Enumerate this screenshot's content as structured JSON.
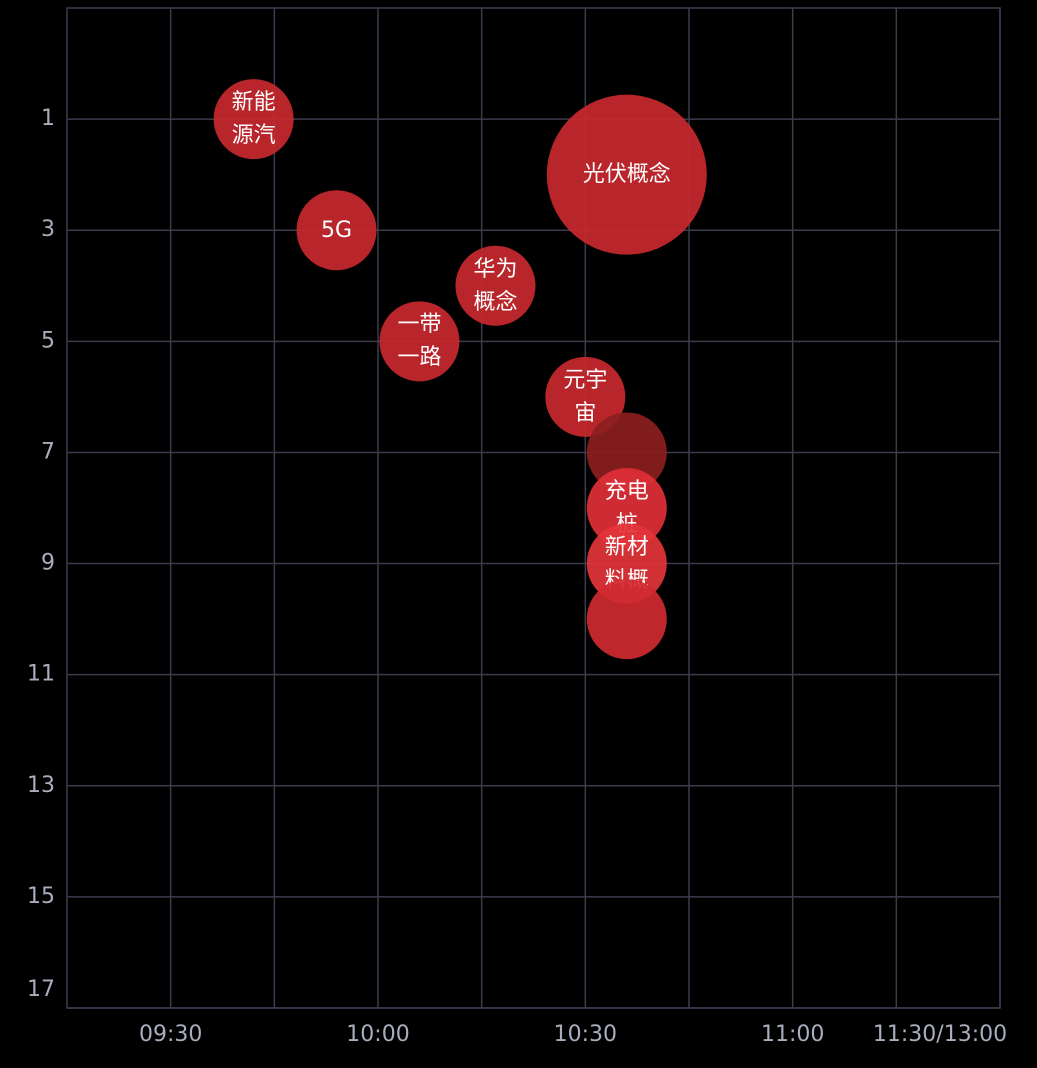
{
  "chart_data": {
    "type": "bubble",
    "x": [
      582,
      636,
      594,
      617,
      606,
      630,
      636,
      636,
      636,
      636
    ],
    "y": [
      1,
      2,
      3,
      4,
      5,
      6,
      7,
      8,
      9,
      10
    ],
    "size": [
      1,
      4,
      1,
      1,
      1,
      1,
      1,
      1,
      1,
      1
    ],
    "labels": [
      "新能源汽",
      "光伏概念",
      "5G",
      "华为概念",
      "一带一路",
      "元宇宙",
      null,
      "充电桩",
      "新材料概",
      null
    ],
    "colors": [
      "#c8282e",
      "#c8282e",
      "#c8282e",
      "#c8282e",
      "#c8282e",
      "#c8282e",
      "#8c1e20",
      "#df2f36",
      "#e3343a",
      "#d02a30"
    ],
    "xlim": [
      555,
      690
    ],
    "xticks": [
      {
        "value": 570,
        "label": "09:30"
      },
      {
        "value": 600,
        "label": "10:00"
      },
      {
        "value": 630,
        "label": "10:30"
      },
      {
        "value": 660,
        "label": "11:00"
      },
      {
        "value": 690,
        "label": "11:30/13:00"
      }
    ],
    "x_minor_ticks": [
      585,
      615,
      645,
      675
    ],
    "ylim": [
      17,
      -1
    ],
    "yticks": [
      1,
      3,
      5,
      7,
      9,
      11,
      13,
      15,
      17
    ],
    "grid": true
  }
}
